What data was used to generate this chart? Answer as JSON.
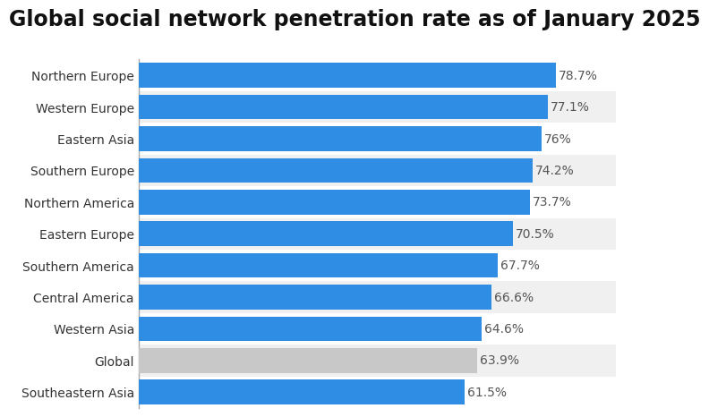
{
  "title": "Global social network penetration rate as of January 2025",
  "categories": [
    "Southeastern Asia",
    "Global",
    "Western Asia",
    "Central America",
    "Southern America",
    "Eastern Europe",
    "Northern America",
    "Southern Europe",
    "Eastern Asia",
    "Western Europe",
    "Northern Europe"
  ],
  "values": [
    61.5,
    63.9,
    64.6,
    66.6,
    67.7,
    70.5,
    73.7,
    74.2,
    76.0,
    77.1,
    78.7
  ],
  "labels": [
    "61.5%",
    "63.9%",
    "64.6%",
    "66.6%",
    "67.7%",
    "70.5%",
    "73.7%",
    "74.2%",
    "76%",
    "77.1%",
    "78.7%"
  ],
  "bar_colors": [
    "#2f8de4",
    "#c8c8c8",
    "#2f8de4",
    "#2f8de4",
    "#2f8de4",
    "#2f8de4",
    "#2f8de4",
    "#2f8de4",
    "#2f8de4",
    "#2f8de4",
    "#2f8de4"
  ],
  "row_bg_colors": [
    "#ffffff",
    "#f0f0f0"
  ],
  "background_color": "#ffffff",
  "title_fontsize": 17,
  "label_fontsize": 10,
  "value_fontsize": 10,
  "xlim": [
    0,
    90
  ],
  "bar_height": 0.78,
  "grid_color": "#cccccc",
  "label_color": "#333333",
  "value_color": "#555555",
  "title_color": "#111111"
}
